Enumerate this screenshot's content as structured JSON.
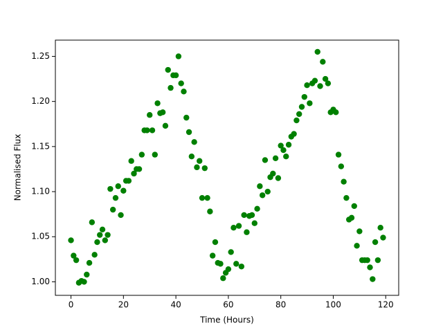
{
  "chart_data": {
    "type": "scatter",
    "x_label": "Time (Hours)",
    "y_label": "Normalised Flux",
    "color": "#008000",
    "x": [
      0,
      1,
      2,
      3,
      4,
      5,
      6,
      7,
      8,
      9,
      10,
      11,
      12,
      13,
      14,
      15,
      16,
      17,
      18,
      19,
      20,
      21,
      22,
      23,
      24,
      25,
      26,
      27,
      28,
      29,
      30,
      31,
      32,
      33,
      34,
      35,
      36,
      37,
      38,
      39,
      40,
      41,
      42,
      43,
      44,
      45,
      46,
      47,
      48,
      49,
      50,
      51,
      52,
      53,
      54,
      55,
      56,
      57,
      58,
      59,
      60,
      61,
      62,
      63,
      64,
      65,
      66,
      67,
      68,
      69,
      70,
      71,
      72,
      73,
      74,
      75,
      76,
      77,
      78,
      79,
      80,
      81,
      82,
      83,
      84,
      85,
      86,
      87,
      88,
      89,
      90,
      91,
      92,
      93,
      94,
      95,
      96,
      97,
      98,
      99,
      100,
      101,
      102,
      103,
      104,
      105,
      106,
      107,
      108,
      109,
      110,
      111,
      112,
      113,
      114,
      115,
      116,
      117,
      118,
      119
    ],
    "values": [
      1.046,
      1.029,
      1.024,
      0.999,
      1.001,
      1.0,
      1.008,
      1.021,
      1.066,
      1.03,
      1.044,
      1.052,
      1.058,
      1.046,
      1.052,
      1.103,
      1.08,
      1.093,
      1.106,
      1.074,
      1.101,
      1.112,
      1.112,
      1.134,
      1.12,
      1.125,
      1.125,
      1.141,
      1.168,
      1.168,
      1.185,
      1.168,
      1.141,
      1.198,
      1.187,
      1.188,
      1.173,
      1.235,
      1.215,
      1.229,
      1.229,
      1.25,
      1.22,
      1.211,
      1.182,
      1.166,
      1.139,
      1.155,
      1.127,
      1.134,
      1.093,
      1.126,
      1.093,
      1.078,
      1.029,
      1.044,
      1.021,
      1.02,
      1.004,
      1.01,
      1.014,
      1.033,
      1.06,
      1.02,
      1.062,
      1.017,
      1.074,
      1.055,
      1.073,
      1.074,
      1.065,
      1.081,
      1.106,
      1.096,
      1.135,
      1.1,
      1.116,
      1.12,
      1.137,
      1.115,
      1.151,
      1.146,
      1.139,
      1.152,
      1.161,
      1.164,
      1.179,
      1.186,
      1.194,
      1.205,
      1.218,
      1.198,
      1.22,
      1.223,
      1.255,
      1.217,
      1.244,
      1.225,
      1.22,
      1.188,
      1.191,
      1.188,
      1.141,
      1.128,
      1.111,
      1.093,
      1.069,
      1.071,
      1.084,
      1.04,
      1.056,
      1.024,
      1.024,
      1.024,
      1.016,
      1.003,
      1.044,
      1.024,
      1.06,
      1.049
    ],
    "xlim": [
      -5.95,
      124.95
    ],
    "ylim": [
      0.985,
      1.268
    ],
    "xticks": [
      0,
      20,
      40,
      60,
      80,
      100,
      120
    ],
    "yticks": [
      {
        "value": 1.0,
        "label": "1.00"
      },
      {
        "value": 1.05,
        "label": "1.05"
      },
      {
        "value": 1.1,
        "label": "1.10"
      },
      {
        "value": 1.15,
        "label": "1.15"
      },
      {
        "value": 1.2,
        "label": "1.20"
      },
      {
        "value": 1.25,
        "label": "1.25"
      }
    ]
  }
}
